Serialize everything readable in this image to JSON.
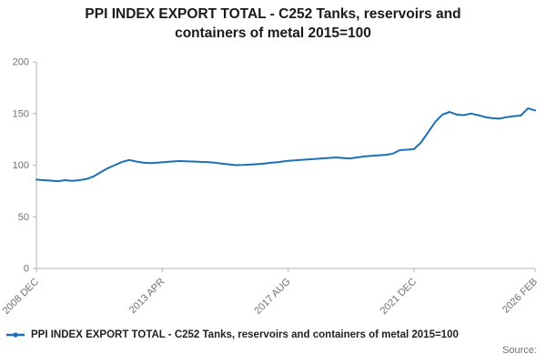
{
  "title": "PPI INDEX EXPORT TOTAL - C252 Tanks, reservoirs and containers of metal 2015=100",
  "legend": {
    "label": "PPI INDEX EXPORT TOTAL - C252 Tanks, reservoirs and containers of metal 2015=100"
  },
  "source": {
    "label": "Source:"
  },
  "colors": {
    "line": "#1d70b8",
    "axis": "#b3b3b3",
    "tick_text": "#707070",
    "title_text": "#1a1a1a",
    "legend_text": "#222222",
    "source_text": "#707070"
  },
  "chart_data": {
    "type": "line",
    "title": "PPI INDEX EXPORT TOTAL - C252 Tanks, reservoirs and containers of metal 2015=100",
    "xlabel": "",
    "ylabel": "",
    "ylim": [
      0,
      200
    ],
    "y_ticks": [
      0,
      50,
      100,
      150,
      200
    ],
    "xlim_months": [
      0,
      206
    ],
    "x_ticks": [
      {
        "month": 0,
        "label": "2008 DEC"
      },
      {
        "month": 52,
        "label": "2013 APR"
      },
      {
        "month": 104,
        "label": "2017 AUG"
      },
      {
        "month": 156,
        "label": "2021 DEC"
      },
      {
        "month": 206,
        "label": "2026 FEB"
      }
    ],
    "grid": false,
    "legend_position": "bottom-left",
    "series_name": "PPI INDEX EXPORT TOTAL - C252 Tanks, reservoirs and containers of metal 2015=100",
    "values": [
      86,
      85.5,
      85,
      84.5,
      85.5,
      84.8,
      85.5,
      86.5,
      89,
      93,
      97,
      100,
      103,
      105,
      103.5,
      102.5,
      102,
      102.5,
      103,
      103.5,
      104,
      103.8,
      103.5,
      103.2,
      103,
      102.5,
      101.5,
      100.8,
      100,
      100.2,
      100.5,
      101,
      101.5,
      102.5,
      103,
      104,
      104.5,
      105,
      105.5,
      106,
      106.5,
      107,
      107.5,
      107,
      106.5,
      107.5,
      108.5,
      109,
      109.5,
      110,
      111,
      114.5,
      115,
      115.5,
      122,
      132,
      142,
      149,
      151.5,
      149,
      148.5,
      150,
      148.5,
      146.5,
      145.5,
      145,
      146.5,
      147.5,
      148,
      155,
      153
    ]
  }
}
